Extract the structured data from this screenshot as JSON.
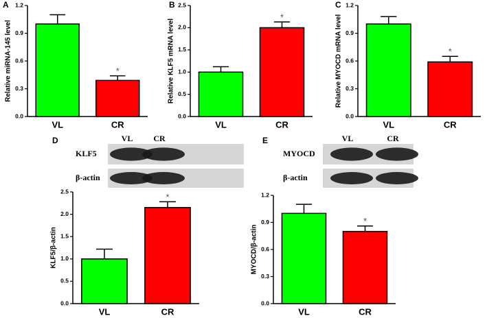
{
  "chart_data": [
    {
      "type": "bar",
      "panel": "A",
      "ylabel": "Relative miRNA-145 level",
      "categories": [
        "VL",
        "CR"
      ],
      "values": [
        1.0,
        0.39
      ],
      "errors": [
        0.1,
        0.05
      ],
      "colors": [
        "#00ff00",
        "#ff0000"
      ],
      "significance": [
        null,
        "*"
      ],
      "ylim": [
        0,
        1.2
      ],
      "yticks": [
        {
          "value": 0,
          "label": "0.0"
        },
        0.3,
        0.6,
        0.9,
        1.2
      ]
    },
    {
      "type": "bar",
      "panel": "B",
      "ylabel": "Relative KLF5 mRNA level",
      "categories": [
        "VL",
        "CR"
      ],
      "values": [
        1.0,
        2.0
      ],
      "errors": [
        0.12,
        0.13
      ],
      "colors": [
        "#00ff00",
        "#ff0000"
      ],
      "significance": [
        null,
        "*"
      ],
      "ylim": [
        0,
        2.5
      ],
      "yticks": [
        {
          "value": 0,
          "label": "0.0"
        },
        0.5,
        {
          "value": 1,
          "label": "1.0"
        },
        1.5,
        {
          "value": 2,
          "label": "2.0"
        },
        2.5
      ]
    },
    {
      "type": "bar",
      "panel": "C",
      "ylabel": "Relative MYOCD mRNA level",
      "categories": [
        "VL",
        "CR"
      ],
      "values": [
        1.0,
        0.59
      ],
      "errors": [
        0.08,
        0.06
      ],
      "colors": [
        "#00ff00",
        "#ff0000"
      ],
      "significance": [
        null,
        "*"
      ],
      "ylim": [
        0,
        1.2
      ],
      "yticks": [
        {
          "value": 0,
          "label": "0.0"
        },
        0.3,
        0.6,
        0.9,
        1.2
      ]
    },
    {
      "type": "bar",
      "panel": "D",
      "ylabel": "KLF5/β-actin",
      "blot": {
        "columns": [
          "VL",
          "CR"
        ],
        "rows": [
          "KLF5",
          "β-actin"
        ]
      },
      "categories": [
        "VL",
        "CR"
      ],
      "values": [
        1.0,
        2.15
      ],
      "errors": [
        0.22,
        0.13
      ],
      "colors": [
        "#00ff00",
        "#ff0000"
      ],
      "significance": [
        null,
        "*"
      ],
      "ylim": [
        0,
        2.5
      ],
      "yticks": [
        {
          "value": 0,
          "label": "0.0"
        },
        0.5,
        {
          "value": 1,
          "label": "1.0"
        },
        1.5,
        {
          "value": 2,
          "label": "2.0"
        },
        2.5
      ]
    },
    {
      "type": "bar",
      "panel": "E",
      "ylabel": "MYOCD/β-actin",
      "blot": {
        "columns": [
          "VL",
          "CR"
        ],
        "rows": [
          "MYOCD",
          "β-actin"
        ]
      },
      "categories": [
        "VL",
        "CR"
      ],
      "values": [
        1.0,
        0.8
      ],
      "errors": [
        0.1,
        0.06
      ],
      "colors": [
        "#00ff00",
        "#ff0000"
      ],
      "significance": [
        null,
        "*"
      ],
      "ylim": [
        0,
        1.2
      ],
      "yticks": [
        {
          "value": 0,
          "label": "0.0"
        },
        0.3,
        0.6,
        0.9,
        1.2
      ]
    }
  ]
}
